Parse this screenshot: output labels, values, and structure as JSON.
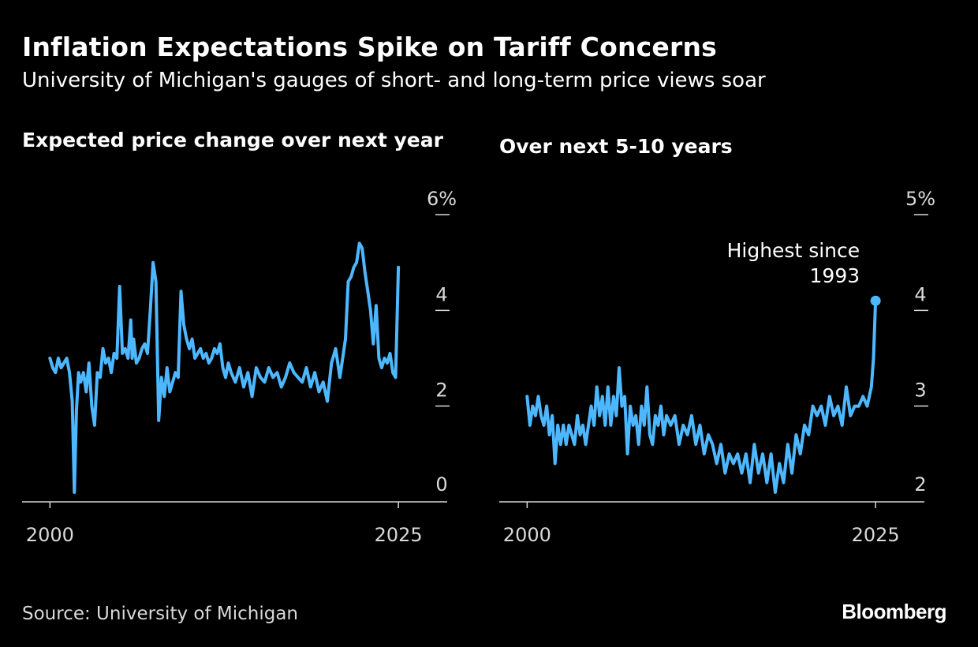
{
  "header": {
    "title": "Inflation Expectations Spike on Tariff Concerns",
    "subtitle": "University of Michigan's gauges of short- and long-term price views soar"
  },
  "footer": {
    "source": "Source: University of Michigan",
    "logo": "Bloomberg"
  },
  "colors": {
    "background": "#000000",
    "line": "#4db8ff",
    "text": "#ffffff",
    "axis": "#d9d9d9"
  },
  "chart_data": [
    {
      "type": "line",
      "title": "Expected price change over next year",
      "xlim": [
        1998,
        2028.5
      ],
      "ylim": [
        0,
        6
      ],
      "yticks": [
        0,
        2,
        4,
        6
      ],
      "ytick_labels": [
        "0",
        "2",
        "4",
        "6%"
      ],
      "xticks": [
        2000,
        2025
      ],
      "xtick_labels": [
        "2000",
        "2025"
      ],
      "grid": false,
      "series": [
        {
          "x": [
            2000.0,
            2000.2,
            2000.4,
            2000.6,
            2000.8,
            2001.0,
            2001.2,
            2001.4,
            2001.6,
            2001.75,
            2001.9,
            2002.05,
            2002.2,
            2002.4,
            2002.6,
            2002.8,
            2003.0,
            2003.2,
            2003.4,
            2003.6,
            2003.8,
            2004.0,
            2004.2,
            2004.4,
            2004.6,
            2004.8,
            2005.0,
            2005.2,
            2005.4,
            2005.6,
            2005.8,
            2005.9,
            2006.0,
            2006.2,
            2006.4,
            2006.6,
            2006.8,
            2007.0,
            2007.2,
            2007.4,
            2007.6,
            2007.8,
            2008.0,
            2008.2,
            2008.4,
            2008.6,
            2008.8,
            2009.0,
            2009.2,
            2009.4,
            2009.6,
            2009.8,
            2010.0,
            2010.2,
            2010.4,
            2010.6,
            2010.8,
            2011.0,
            2011.2,
            2011.4,
            2011.6,
            2011.8,
            2012.0,
            2012.2,
            2012.4,
            2012.6,
            2012.8,
            2013.0,
            2013.3,
            2013.6,
            2013.9,
            2014.2,
            2014.5,
            2014.8,
            2015.1,
            2015.4,
            2015.7,
            2016.0,
            2016.3,
            2016.6,
            2016.9,
            2017.2,
            2017.5,
            2017.8,
            2018.1,
            2018.4,
            2018.7,
            2019.0,
            2019.3,
            2019.6,
            2019.9,
            2020.2,
            2020.5,
            2020.8,
            2021.0,
            2021.2,
            2021.4,
            2021.6,
            2021.8,
            2022.0,
            2022.2,
            2022.4,
            2022.6,
            2022.8,
            2023.0,
            2023.2,
            2023.4,
            2023.6,
            2023.8,
            2024.0,
            2024.2,
            2024.4,
            2024.6,
            2024.8,
            2025.0
          ],
          "y": [
            3.0,
            2.8,
            2.7,
            3.0,
            2.8,
            2.9,
            3.0,
            2.7,
            2.1,
            0.2,
            1.9,
            2.7,
            2.5,
            2.7,
            2.3,
            2.9,
            2.0,
            1.6,
            2.7,
            2.6,
            3.2,
            2.9,
            3.0,
            2.7,
            3.1,
            3.0,
            4.5,
            3.1,
            3.2,
            3.0,
            3.8,
            3.0,
            3.4,
            2.9,
            3.0,
            3.2,
            3.3,
            3.1,
            4.0,
            5.0,
            4.6,
            1.7,
            2.6,
            2.2,
            2.8,
            2.3,
            2.5,
            2.7,
            2.6,
            4.4,
            3.7,
            3.4,
            3.2,
            3.4,
            3.0,
            3.1,
            3.2,
            3.0,
            3.1,
            2.9,
            3.0,
            3.2,
            3.1,
            3.3,
            2.8,
            2.6,
            2.9,
            2.7,
            2.5,
            2.8,
            2.4,
            2.7,
            2.2,
            2.8,
            2.6,
            2.5,
            2.8,
            2.6,
            2.7,
            2.4,
            2.6,
            2.9,
            2.7,
            2.6,
            2.5,
            2.8,
            2.4,
            2.7,
            2.3,
            2.5,
            2.1,
            2.9,
            3.2,
            2.6,
            3.0,
            3.4,
            4.6,
            4.7,
            4.9,
            5.0,
            5.4,
            5.3,
            4.8,
            4.4,
            4.0,
            3.3,
            4.1,
            3.0,
            2.8,
            3.0,
            2.9,
            3.1,
            2.7,
            2.6,
            4.9
          ]
        }
      ]
    },
    {
      "type": "line",
      "title": "Over next 5-10 years",
      "xlim": [
        1998,
        2028.5
      ],
      "ylim": [
        2,
        5
      ],
      "yticks": [
        2,
        3,
        4,
        5
      ],
      "ytick_labels": [
        "2",
        "3",
        "4",
        "5%"
      ],
      "xticks": [
        2000,
        2025
      ],
      "xtick_labels": [
        "2000",
        "2025"
      ],
      "grid": false,
      "annotation": {
        "text_lines": [
          "Highest since",
          "1993"
        ],
        "x": 2025,
        "y": 4.1
      },
      "series": [
        {
          "x": [
            2000.0,
            2000.2,
            2000.4,
            2000.6,
            2000.8,
            2001.0,
            2001.2,
            2001.4,
            2001.6,
            2001.8,
            2002.0,
            2002.2,
            2002.4,
            2002.6,
            2002.8,
            2003.0,
            2003.2,
            2003.4,
            2003.6,
            2003.8,
            2004.0,
            2004.2,
            2004.4,
            2004.6,
            2004.8,
            2005.0,
            2005.2,
            2005.4,
            2005.6,
            2005.8,
            2006.0,
            2006.2,
            2006.4,
            2006.6,
            2006.8,
            2007.0,
            2007.2,
            2007.4,
            2007.6,
            2007.8,
            2008.0,
            2008.2,
            2008.4,
            2008.6,
            2008.8,
            2009.0,
            2009.2,
            2009.4,
            2009.6,
            2009.8,
            2010.0,
            2010.3,
            2010.6,
            2010.9,
            2011.2,
            2011.5,
            2011.8,
            2012.1,
            2012.4,
            2012.7,
            2013.0,
            2013.3,
            2013.6,
            2013.9,
            2014.2,
            2014.5,
            2014.8,
            2015.1,
            2015.4,
            2015.7,
            2016.0,
            2016.3,
            2016.6,
            2016.9,
            2017.2,
            2017.5,
            2017.8,
            2018.1,
            2018.4,
            2018.7,
            2019.0,
            2019.3,
            2019.6,
            2019.9,
            2020.2,
            2020.5,
            2020.8,
            2021.1,
            2021.4,
            2021.7,
            2022.0,
            2022.3,
            2022.6,
            2022.9,
            2023.2,
            2023.5,
            2023.8,
            2024.1,
            2024.4,
            2024.7,
            2024.85,
            2025.0
          ],
          "y": [
            3.1,
            2.8,
            3.0,
            2.9,
            3.1,
            2.9,
            2.8,
            3.0,
            2.7,
            2.9,
            2.4,
            2.8,
            2.6,
            2.8,
            2.6,
            2.8,
            2.7,
            2.6,
            2.9,
            2.7,
            2.8,
            2.6,
            2.8,
            3.0,
            2.8,
            3.2,
            2.9,
            3.1,
            2.8,
            3.2,
            2.8,
            3.1,
            2.9,
            3.4,
            3.0,
            3.1,
            2.5,
            3.0,
            2.8,
            2.9,
            2.6,
            3.0,
            2.8,
            3.2,
            2.7,
            2.6,
            2.9,
            2.8,
            3.0,
            2.7,
            2.9,
            2.8,
            2.9,
            2.6,
            2.8,
            2.7,
            2.9,
            2.6,
            2.8,
            2.5,
            2.7,
            2.6,
            2.4,
            2.6,
            2.3,
            2.5,
            2.4,
            2.5,
            2.3,
            2.5,
            2.2,
            2.6,
            2.3,
            2.5,
            2.2,
            2.5,
            2.1,
            2.4,
            2.2,
            2.6,
            2.3,
            2.7,
            2.5,
            2.8,
            2.7,
            3.0,
            2.9,
            3.0,
            2.8,
            3.1,
            2.9,
            3.0,
            2.8,
            3.2,
            2.9,
            3.0,
            3.0,
            3.1,
            3.0,
            3.2,
            3.5,
            4.1
          ]
        }
      ]
    }
  ]
}
